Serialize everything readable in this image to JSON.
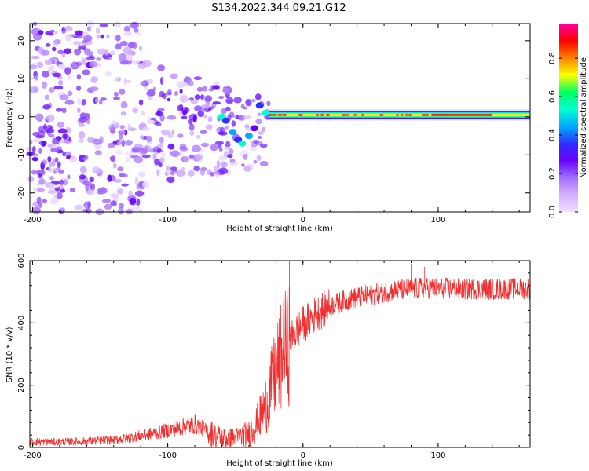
{
  "title": "S134.2022.344.09.21.G12",
  "chart_data": [
    {
      "type": "heatmap",
      "name": "spectrogram",
      "xlabel": "Height of straight line (km)",
      "ylabel": "Frequency (Hz)",
      "xlim": [
        -202,
        168
      ],
      "ylim": [
        -25,
        24.5
      ],
      "xticks": [
        -200,
        -100,
        0,
        100
      ],
      "yticks": [
        -20,
        -10,
        0,
        10,
        20
      ],
      "colorbar": {
        "label": "Normalized spectral amplitude",
        "range": [
          0,
          0.98
        ],
        "ticks": [
          "0.0",
          "0.2",
          "0.4",
          "0.6",
          "0.8"
        ],
        "colormap": [
          "#f0e0ff",
          "#d7b0ff",
          "#a070ff",
          "#6a00ff",
          "#2f2fff",
          "#00aaff",
          "#00ffd0",
          "#00ff60",
          "#ffff00",
          "#ff8000",
          "#ff0000",
          "#ff00a0"
        ]
      },
      "description_points": {
        "noise_region_x": [
          -202,
          -70
        ],
        "transition_x": [
          -70,
          -25
        ],
        "stable_line_x": [
          -25,
          168
        ],
        "stable_line_freq": 0.5
      }
    },
    {
      "type": "line",
      "name": "snr",
      "xlabel": "Height of straight line (km)",
      "ylabel": "SNR (10 * v/v)",
      "xlim": [
        -202,
        168
      ],
      "ylim": [
        0,
        600
      ],
      "xticks": [
        -200,
        -100,
        0,
        100
      ],
      "yticks": [
        0,
        200,
        400,
        600
      ],
      "color": "#f03030",
      "x": [
        -200,
        -180,
        -160,
        -140,
        -130,
        -120,
        -110,
        -100,
        -90,
        -80,
        -70,
        -60,
        -50,
        -40,
        -35,
        -30,
        -25,
        -20,
        -15,
        -10,
        -5,
        0,
        10,
        20,
        30,
        40,
        50,
        60,
        70,
        80,
        90,
        100,
        110,
        120,
        130,
        140,
        150,
        160,
        168
      ],
      "y": [
        18,
        18,
        20,
        24,
        30,
        38,
        45,
        55,
        65,
        75,
        50,
        30,
        28,
        45,
        70,
        110,
        170,
        240,
        300,
        340,
        370,
        395,
        430,
        455,
        470,
        482,
        490,
        500,
        505,
        510,
        512,
        512,
        510,
        508,
        510,
        508,
        510,
        510,
        510
      ],
      "spikes": [
        {
          "x": -85,
          "y": 145
        },
        {
          "x": -20,
          "y": 520
        },
        {
          "x": -10,
          "y": 600
        },
        {
          "x": 80,
          "y": 590
        },
        {
          "x": 90,
          "y": 580
        }
      ]
    }
  ]
}
